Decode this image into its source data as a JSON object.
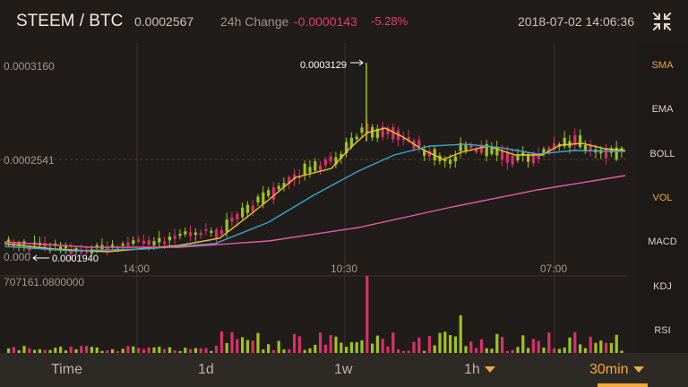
{
  "header": {
    "pair": "STEEM / BTC",
    "last_price": "0.0002567",
    "change_label": "24h Change",
    "change_value": "-0.0000143",
    "change_pct": "-5.28%",
    "datetime": "2018-07-02 14:06:36",
    "fullscreen_icon": "collapse-arrows-icon"
  },
  "chart": {
    "price_labels": [
      "0.0003160",
      "0.0002541",
      "0.0001940"
    ],
    "high_marker": "0.0003129",
    "low_marker": "0.0001940",
    "low_axis_prefix": "0.000",
    "time_labels": [
      "14:00",
      "10:30",
      "07:00"
    ],
    "volume_label": "707161.0800000",
    "colors": {
      "up": "#9fc31e",
      "down": "#d9306a",
      "sma_short": "#f3c42b",
      "sma_mid": "#3aa6d0",
      "sma_long": "#e45ca3"
    }
  },
  "sidebar": {
    "items": [
      {
        "label": "SMA",
        "active": true
      },
      {
        "label": "EMA",
        "active": false
      },
      {
        "label": "BOLL",
        "active": false
      },
      {
        "label": "VOL",
        "active": true
      },
      {
        "label": "MACD",
        "active": false
      },
      {
        "label": "KDJ",
        "active": false
      },
      {
        "label": "RSI",
        "active": false
      }
    ]
  },
  "tabs": [
    {
      "label": "Time",
      "dropdown": false,
      "active": false
    },
    {
      "label": "1d",
      "dropdown": false,
      "active": false
    },
    {
      "label": "1w",
      "dropdown": false,
      "active": false
    },
    {
      "label": "1h",
      "dropdown": true,
      "active": false
    },
    {
      "label": "30min",
      "dropdown": true,
      "active": true
    }
  ]
}
